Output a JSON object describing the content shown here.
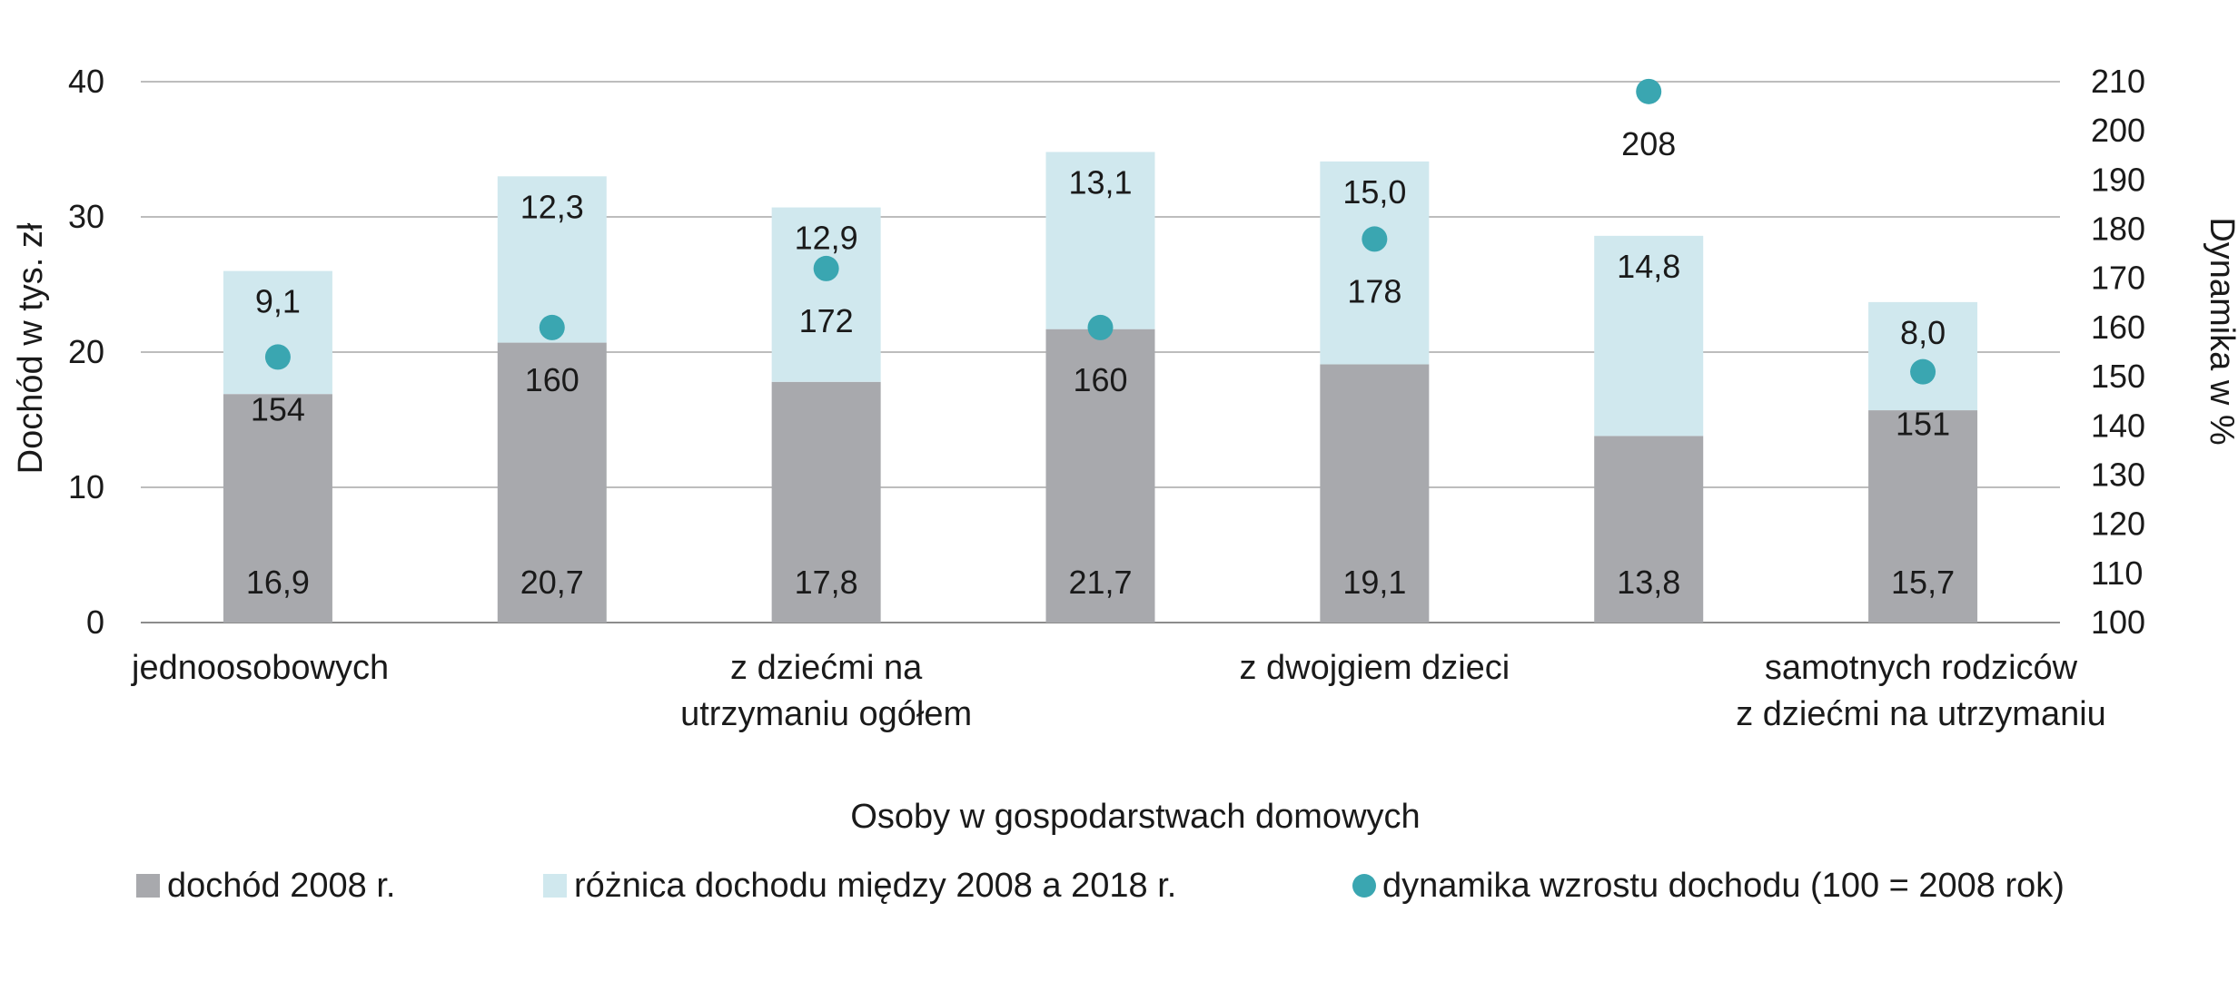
{
  "chart_data": {
    "type": "bar",
    "xlabel": "Osoby w gospodarstwach domowych",
    "ylabel": "Dochód w tys. zł",
    "y2label": "Dynamika w %",
    "ylim": [
      0,
      40
    ],
    "yticks": [
      0,
      10,
      20,
      30,
      40
    ],
    "y2lim": [
      100,
      210
    ],
    "y2ticks": [
      100,
      110,
      120,
      130,
      140,
      150,
      160,
      170,
      180,
      190,
      200,
      210
    ],
    "grid": true,
    "legend_position": "bottom",
    "categories": [
      "jednoosobowych",
      "",
      "z dziećmi na utrzymaniu ogółem",
      "",
      "z dwojgiem dzieci",
      "",
      "samotnych rodziców z dziećmi na utrzymaniu"
    ],
    "category_lines": [
      [
        "jednoosobowych"
      ],
      [],
      [
        "z dziećmi na",
        "utrzymaniu ogółem"
      ],
      [],
      [
        "z dwojgiem dzieci"
      ],
      [],
      [
        "samotnych rodziców",
        "z dziećmi na utrzymaniu"
      ]
    ],
    "series": [
      {
        "name": "dochód 2008 r.",
        "type": "bar",
        "axis": "left",
        "color": "#a8a9ad",
        "values": [
          16.9,
          20.7,
          17.8,
          21.7,
          19.1,
          13.8,
          15.7
        ],
        "labels": [
          "16,9",
          "20,7",
          "17,8",
          "21,7",
          "19,1",
          "13,8",
          "15,7"
        ]
      },
      {
        "name": "różnica dochodu między 2008 a 2018 r.",
        "type": "bar",
        "axis": "left",
        "color": "#d0e8ee",
        "values": [
          9.1,
          12.3,
          12.9,
          13.1,
          15.0,
          14.8,
          8.0
        ],
        "labels": [
          "9,1",
          "12,3",
          "12,9",
          "13,1",
          "15,0",
          "14,8",
          "8,0"
        ]
      },
      {
        "name": "dynamika wzrostu dochodu (100 = 2008 rok)",
        "type": "scatter",
        "axis": "right",
        "color": "#3aa6b1",
        "values": [
          154,
          160,
          172,
          160,
          178,
          208,
          151
        ],
        "labels": [
          "154",
          "160",
          "172",
          "160",
          "178",
          "208",
          "151"
        ]
      }
    ]
  }
}
